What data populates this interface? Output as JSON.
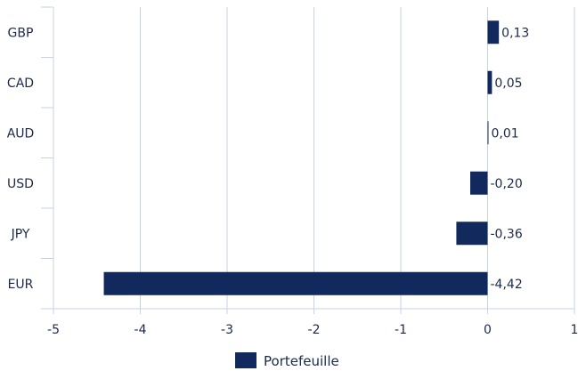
{
  "chart_data": {
    "type": "bar",
    "orientation": "horizontal",
    "categories": [
      "GBP",
      "CAD",
      "AUD",
      "USD",
      "JPY",
      "EUR"
    ],
    "series": [
      {
        "name": "Portefeuille",
        "values": [
          0.13,
          0.05,
          0.01,
          -0.2,
          -0.36,
          -4.42
        ],
        "labels": [
          "0,13",
          "0,05",
          "0,01",
          "-0,20",
          "-0,36",
          "-4,42"
        ],
        "color": "#12295e"
      }
    ],
    "xlim": [
      -5,
      1
    ],
    "x_ticks": [
      -5,
      -4,
      -3,
      -2,
      -1,
      0,
      1
    ],
    "x_tick_labels": [
      "-5",
      "-4",
      "-3",
      "-2",
      "-1",
      "0",
      "1"
    ],
    "grid": "vertical",
    "legend": "bottom-center",
    "gridline_color": "#c6d3e6",
    "text_color": "#1b2a4a"
  }
}
